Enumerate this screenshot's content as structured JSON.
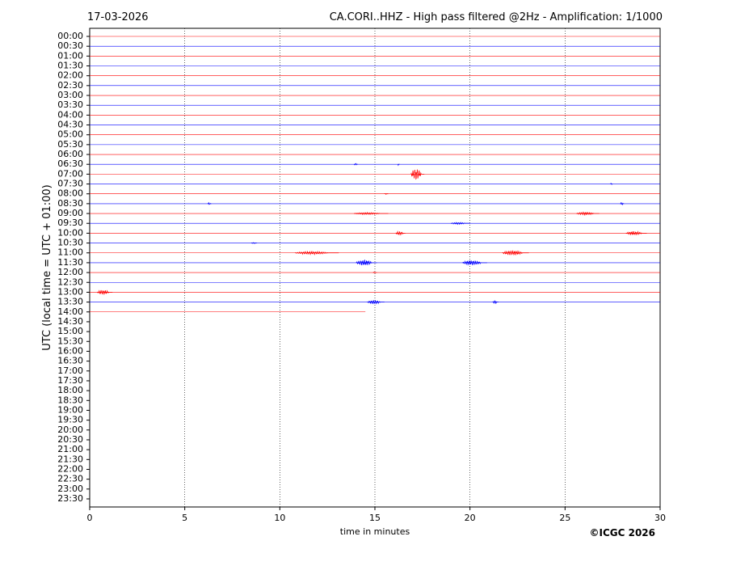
{
  "chart_data": {
    "type": "helicorder",
    "date": "17-03-2026",
    "title": "CA.CORI..HHZ - High pass filtered @2Hz - Amplification: 1/1000",
    "ylabel": "UTC (local time = UTC + 01:00)",
    "xlabel": "time in minutes",
    "copyright": "©ICGC 2026",
    "xlim": [
      0,
      30
    ],
    "xticks": [
      0,
      5,
      10,
      15,
      20,
      25,
      30
    ],
    "grid": true,
    "categories": [
      "00:00",
      "00:30",
      "01:00",
      "01:30",
      "02:00",
      "02:30",
      "03:00",
      "03:30",
      "04:00",
      "04:30",
      "05:00",
      "05:30",
      "06:00",
      "06:30",
      "07:00",
      "07:30",
      "08:00",
      "08:30",
      "09:00",
      "09:30",
      "10:00",
      "10:30",
      "11:00",
      "11:30",
      "12:00",
      "12:30",
      "13:00",
      "13:30",
      "14:00",
      "14:30",
      "15:00",
      "15:30",
      "16:00",
      "16:30",
      "17:00",
      "17:30",
      "18:00",
      "18:30",
      "19:00",
      "19:30",
      "20:00",
      "20:30",
      "21:00",
      "21:30",
      "22:00",
      "22:30",
      "23:00",
      "23:30"
    ],
    "series": [
      {
        "color": "#ff0000",
        "x": [
          0,
          30
        ],
        "bursts": []
      },
      {
        "color": "#0000ff",
        "x": [
          0,
          30
        ],
        "bursts": []
      },
      {
        "color": "#ff0000",
        "x": [
          0,
          30
        ],
        "bursts": []
      },
      {
        "color": "#0000ff",
        "x": [
          0,
          30
        ],
        "bursts": []
      },
      {
        "color": "#ff0000",
        "x": [
          0,
          30
        ],
        "bursts": []
      },
      {
        "color": "#0000ff",
        "x": [
          0,
          30
        ],
        "bursts": []
      },
      {
        "color": "#ff0000",
        "x": [
          0,
          30
        ],
        "bursts": []
      },
      {
        "color": "#0000ff",
        "x": [
          0,
          30
        ],
        "bursts": []
      },
      {
        "color": "#ff0000",
        "x": [
          0,
          30
        ],
        "bursts": []
      },
      {
        "color": "#0000ff",
        "x": [
          0,
          30
        ],
        "bursts": []
      },
      {
        "color": "#ff0000",
        "x": [
          0,
          30
        ],
        "bursts": []
      },
      {
        "color": "#0000ff",
        "x": [
          0,
          30
        ],
        "bursts": []
      },
      {
        "color": "#ff0000",
        "x": [
          0,
          30
        ],
        "bursts": []
      },
      {
        "color": "#0000ff",
        "x": [
          0,
          30
        ],
        "bursts": [
          [
            13.9,
            14.1,
            0.1
          ],
          [
            16.2,
            16.3,
            0.1
          ]
        ]
      },
      {
        "color": "#ff0000",
        "x": [
          0,
          30
        ],
        "bursts": [
          [
            16.9,
            17.6,
            0.6
          ]
        ]
      },
      {
        "color": "#0000ff",
        "x": [
          0,
          30
        ],
        "bursts": [
          [
            27.4,
            27.5,
            0.1
          ]
        ]
      },
      {
        "color": "#ff0000",
        "x": [
          0,
          30
        ],
        "bursts": [
          [
            15.5,
            15.7,
            0.05
          ]
        ]
      },
      {
        "color": "#0000ff",
        "x": [
          0,
          30
        ],
        "bursts": [
          [
            6.2,
            6.4,
            0.1
          ],
          [
            27.9,
            28.1,
            0.15
          ]
        ]
      },
      {
        "color": "#ff0000",
        "x": [
          0,
          30
        ],
        "bursts": [
          [
            13.9,
            15.7,
            0.1
          ],
          [
            25.6,
            26.8,
            0.15
          ]
        ]
      },
      {
        "color": "#0000ff",
        "x": [
          0,
          30
        ],
        "bursts": [
          [
            19.0,
            20.0,
            0.1
          ]
        ]
      },
      {
        "color": "#ff0000",
        "x": [
          0,
          30
        ],
        "bursts": [
          [
            16.1,
            16.6,
            0.2
          ],
          [
            28.2,
            29.3,
            0.2
          ]
        ]
      },
      {
        "color": "#0000ff",
        "x": [
          0,
          30
        ],
        "bursts": [
          [
            8.5,
            8.8,
            0.05
          ]
        ]
      },
      {
        "color": "#ff0000",
        "x": [
          0,
          30
        ],
        "bursts": [
          [
            10.8,
            13.1,
            0.15
          ],
          [
            21.7,
            23.1,
            0.25
          ]
        ]
      },
      {
        "color": "#0000ff",
        "x": [
          0,
          30
        ],
        "bursts": [
          [
            14.0,
            15.1,
            0.3
          ],
          [
            19.6,
            20.9,
            0.25
          ]
        ]
      },
      {
        "color": "#ff0000",
        "x": [
          0,
          30
        ],
        "bursts": [
          [
            14.9,
            15.1,
            0.05
          ]
        ]
      },
      {
        "color": "#0000ff",
        "x": [
          0,
          30
        ],
        "bursts": []
      },
      {
        "color": "#ff0000",
        "x": [
          0,
          30
        ],
        "bursts": [
          [
            0.4,
            1.2,
            0.25
          ]
        ]
      },
      {
        "color": "#0000ff",
        "x": [
          0,
          30
        ],
        "bursts": [
          [
            14.6,
            15.5,
            0.2
          ],
          [
            21.2,
            21.5,
            0.2
          ]
        ]
      },
      {
        "color": "#ff0000",
        "x": [
          0,
          14.5
        ],
        "bursts": []
      }
    ]
  }
}
